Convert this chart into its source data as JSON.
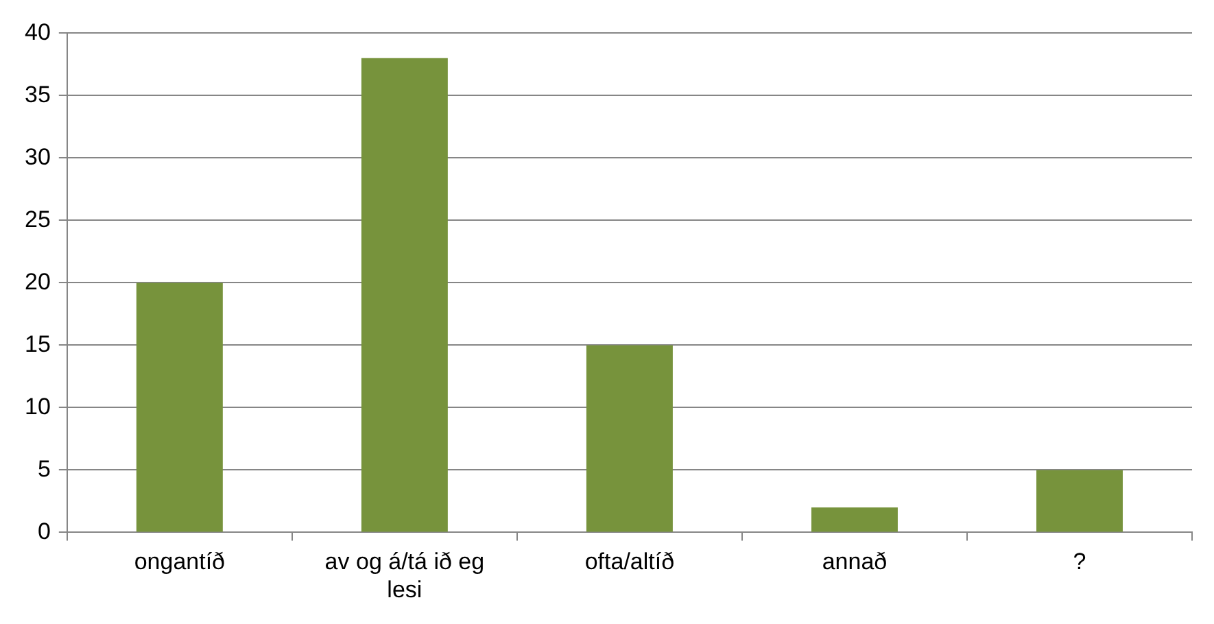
{
  "chart_data": {
    "type": "bar",
    "categories": [
      "ongantíð",
      "av og á/tá ið eg lesi",
      "ofta/altíð",
      "annað",
      "?"
    ],
    "values": [
      20,
      38,
      15,
      2,
      5
    ],
    "color": "#77933c",
    "ylim": [
      0,
      40
    ],
    "yticks": [
      0,
      5,
      10,
      15,
      20,
      25,
      30,
      35,
      40
    ],
    "grid": "y"
  }
}
